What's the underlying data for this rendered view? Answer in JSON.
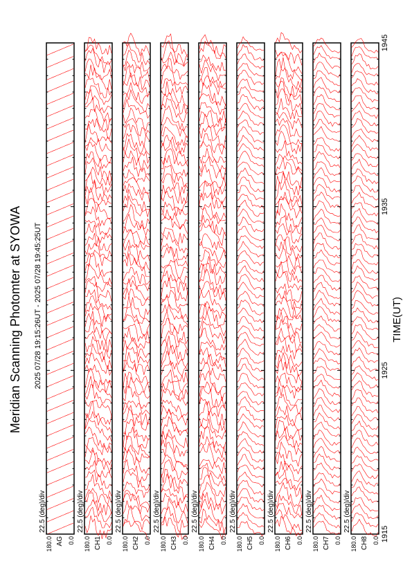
{
  "title": "Meridian Scanning Photomter at SYOWA",
  "time_range": "2025 07/28 19:15:26UT - 2025 07/28 19:45:25UT",
  "xlabel": "TIME(UT)",
  "scale_label": "22.5 (deg)/div",
  "colors": {
    "trace": "#ff0000",
    "frame": "#000000",
    "background": "#ffffff"
  },
  "chart_data": {
    "type": "line",
    "orientation": "rotated-90",
    "x": {
      "label": "TIME(UT)",
      "range": [
        "1915",
        "1945"
      ],
      "ticks": [
        "1915",
        "1925",
        "1935",
        "1945"
      ]
    },
    "y": {
      "range": [
        0.0,
        180.0
      ],
      "tick_labels": [
        "180.0",
        "0.0"
      ],
      "scale": "22.5 (deg)/div"
    },
    "panels": [
      {
        "channel": "AG",
        "trace_count": 40,
        "style": "sawtooth"
      },
      {
        "channel": "CH1",
        "trace_count": 60,
        "style": "noisy"
      },
      {
        "channel": "CH2",
        "trace_count": 60,
        "style": "noisy"
      },
      {
        "channel": "CH3",
        "trace_count": 60,
        "style": "noisy"
      },
      {
        "channel": "CH4",
        "trace_count": 60,
        "style": "noisy"
      },
      {
        "channel": "CH5",
        "trace_count": 60,
        "style": "smooth"
      },
      {
        "channel": "CH6",
        "trace_count": 60,
        "style": "noisy"
      },
      {
        "channel": "CH7",
        "trace_count": 60,
        "style": "smooth"
      },
      {
        "channel": "CH8",
        "trace_count": 60,
        "style": "smooth"
      }
    ]
  }
}
